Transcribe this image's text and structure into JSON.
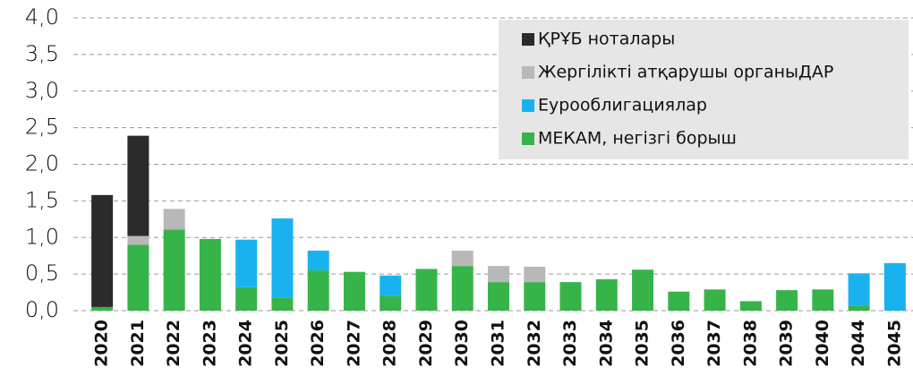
{
  "chart_data": {
    "type": "stacked_bar",
    "categories": [
      "2020",
      "2021",
      "2022",
      "2023",
      "2024",
      "2025",
      "2026",
      "2027",
      "2028",
      "2029",
      "2030",
      "2031",
      "2032",
      "2033",
      "2034",
      "2035",
      "2036",
      "2037",
      "2038",
      "2039",
      "2040",
      "2044",
      "2045"
    ],
    "series": [
      {
        "name": "ҚРҰБ ноталары",
        "color": "#2b2b2b",
        "values": [
          1.53,
          1.37,
          0,
          0,
          0,
          0,
          0,
          0,
          0,
          0,
          0,
          0,
          0,
          0,
          0,
          0,
          0,
          0,
          0,
          0,
          0,
          0,
          0
        ]
      },
      {
        "name": "Жергілікті атқарушы органыДАР",
        "color": "#b8b8b8",
        "values": [
          0,
          0.12,
          0.28,
          0,
          0,
          0,
          0,
          0,
          0,
          0,
          0.21,
          0.22,
          0.21,
          0,
          0,
          0,
          0,
          0,
          0,
          0,
          0,
          0,
          0
        ]
      },
      {
        "name": "Еурооблигациялар",
        "color": "#1ab2ee",
        "values": [
          0,
          0,
          0,
          0,
          0.65,
          1.08,
          0.27,
          0,
          0.28,
          0,
          0,
          0,
          0,
          0,
          0,
          0,
          0,
          0,
          0,
          0,
          0,
          0.44,
          0.65
        ]
      },
      {
        "name": "МЕКАМ, негізгі борыш",
        "color": "#37b449",
        "values": [
          0.05,
          0.9,
          1.11,
          0.98,
          0.32,
          0.18,
          0.55,
          0.53,
          0.2,
          0.57,
          0.61,
          0.39,
          0.39,
          0.39,
          0.43,
          0.56,
          0.26,
          0.29,
          0.13,
          0.28,
          0.29,
          0.07,
          0
        ]
      }
    ],
    "ylim": [
      0,
      4
    ],
    "yticks": [
      {
        "value": 0,
        "label": "0,0"
      },
      {
        "value": 0.5,
        "label": "0,5"
      },
      {
        "value": 1,
        "label": "1,0"
      },
      {
        "value": 1.5,
        "label": "1,5"
      },
      {
        "value": 2,
        "label": "2,0"
      },
      {
        "value": 2.5,
        "label": "2,5"
      },
      {
        "value": 3,
        "label": "3,0"
      },
      {
        "value": 3.5,
        "label": "3,5"
      },
      {
        "value": 4,
        "label": "4,0"
      }
    ],
    "grid": true,
    "legend": "upper right"
  }
}
